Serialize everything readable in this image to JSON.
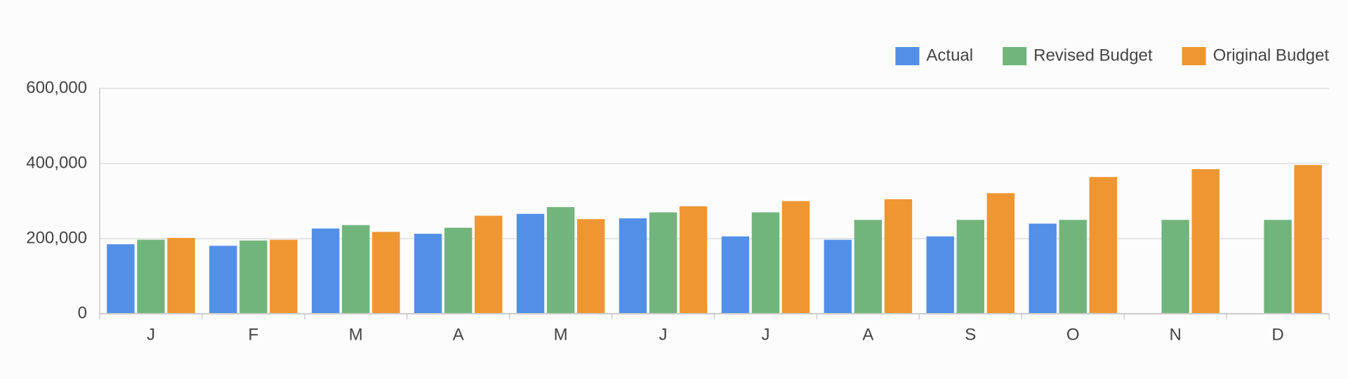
{
  "chart_data": {
    "type": "bar",
    "categories": [
      "J",
      "F",
      "M",
      "A",
      "M",
      "J",
      "J",
      "A",
      "S",
      "O",
      "N",
      "D"
    ],
    "series": [
      {
        "name": "Actual",
        "color": "#5290e8",
        "values": [
          185000,
          181000,
          227000,
          213000,
          266000,
          254000,
          206000,
          197000,
          206000,
          240000,
          null,
          null
        ]
      },
      {
        "name": "Revised Budget",
        "color": "#72b57c",
        "values": [
          197000,
          195000,
          236000,
          229000,
          284000,
          270000,
          270000,
          250000,
          250000,
          250000,
          250000,
          250000
        ]
      },
      {
        "name": "Original Budget",
        "color": "#ee9632",
        "values": [
          202000,
          197000,
          218000,
          261000,
          252000,
          286000,
          300000,
          305000,
          321000,
          364000,
          385000,
          396000
        ]
      }
    ],
    "ylim": [
      0,
      600000
    ],
    "yticks": [
      0,
      {
        "value": 200000,
        "label": "200,000"
      },
      {
        "value": 400000,
        "label": "400,000"
      },
      {
        "value": 600000,
        "label": "600,000"
      }
    ],
    "grid": true,
    "legend": "top-right"
  }
}
